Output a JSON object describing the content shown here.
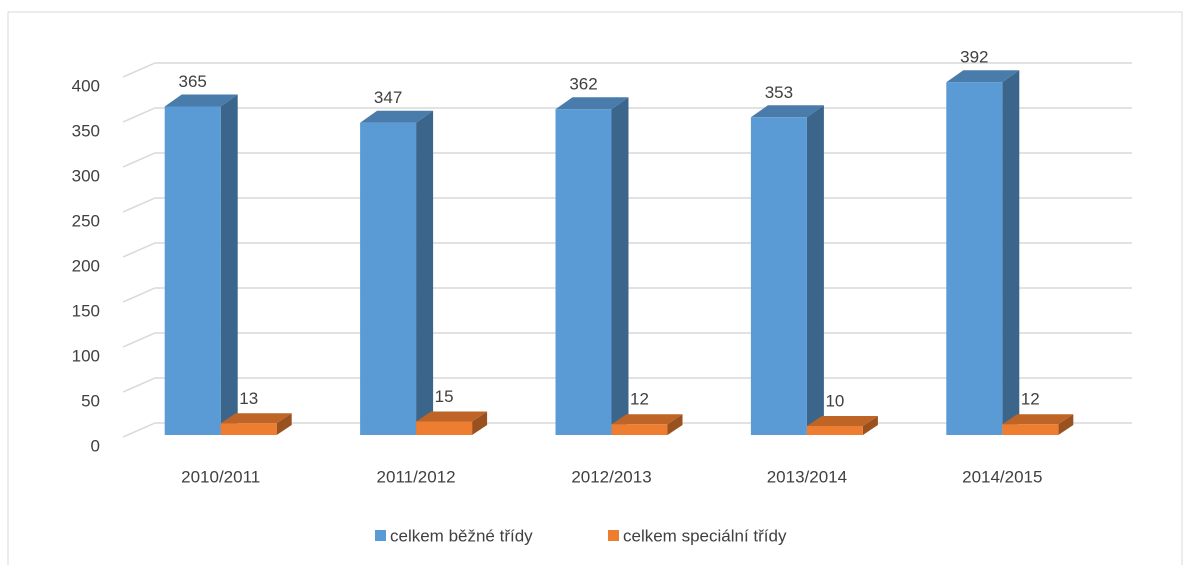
{
  "chart_data": {
    "type": "bar3d",
    "categories": [
      "2010/2011",
      "2011/2012",
      "2012/2013",
      "2013/2014",
      "2014/2015"
    ],
    "series": [
      {
        "name": "celkem běžné třídy",
        "color": "#5b9bd5",
        "values": [
          365,
          347,
          362,
          353,
          392
        ]
      },
      {
        "name": "celkem speciální třídy",
        "color": "#ed7d31",
        "values": [
          13,
          15,
          12,
          10,
          12
        ]
      }
    ],
    "ylim": [
      0,
      400
    ],
    "yticks": [
      0,
      50,
      100,
      150,
      200,
      250,
      300,
      350,
      400
    ],
    "grid": true,
    "legend": "bottom"
  }
}
